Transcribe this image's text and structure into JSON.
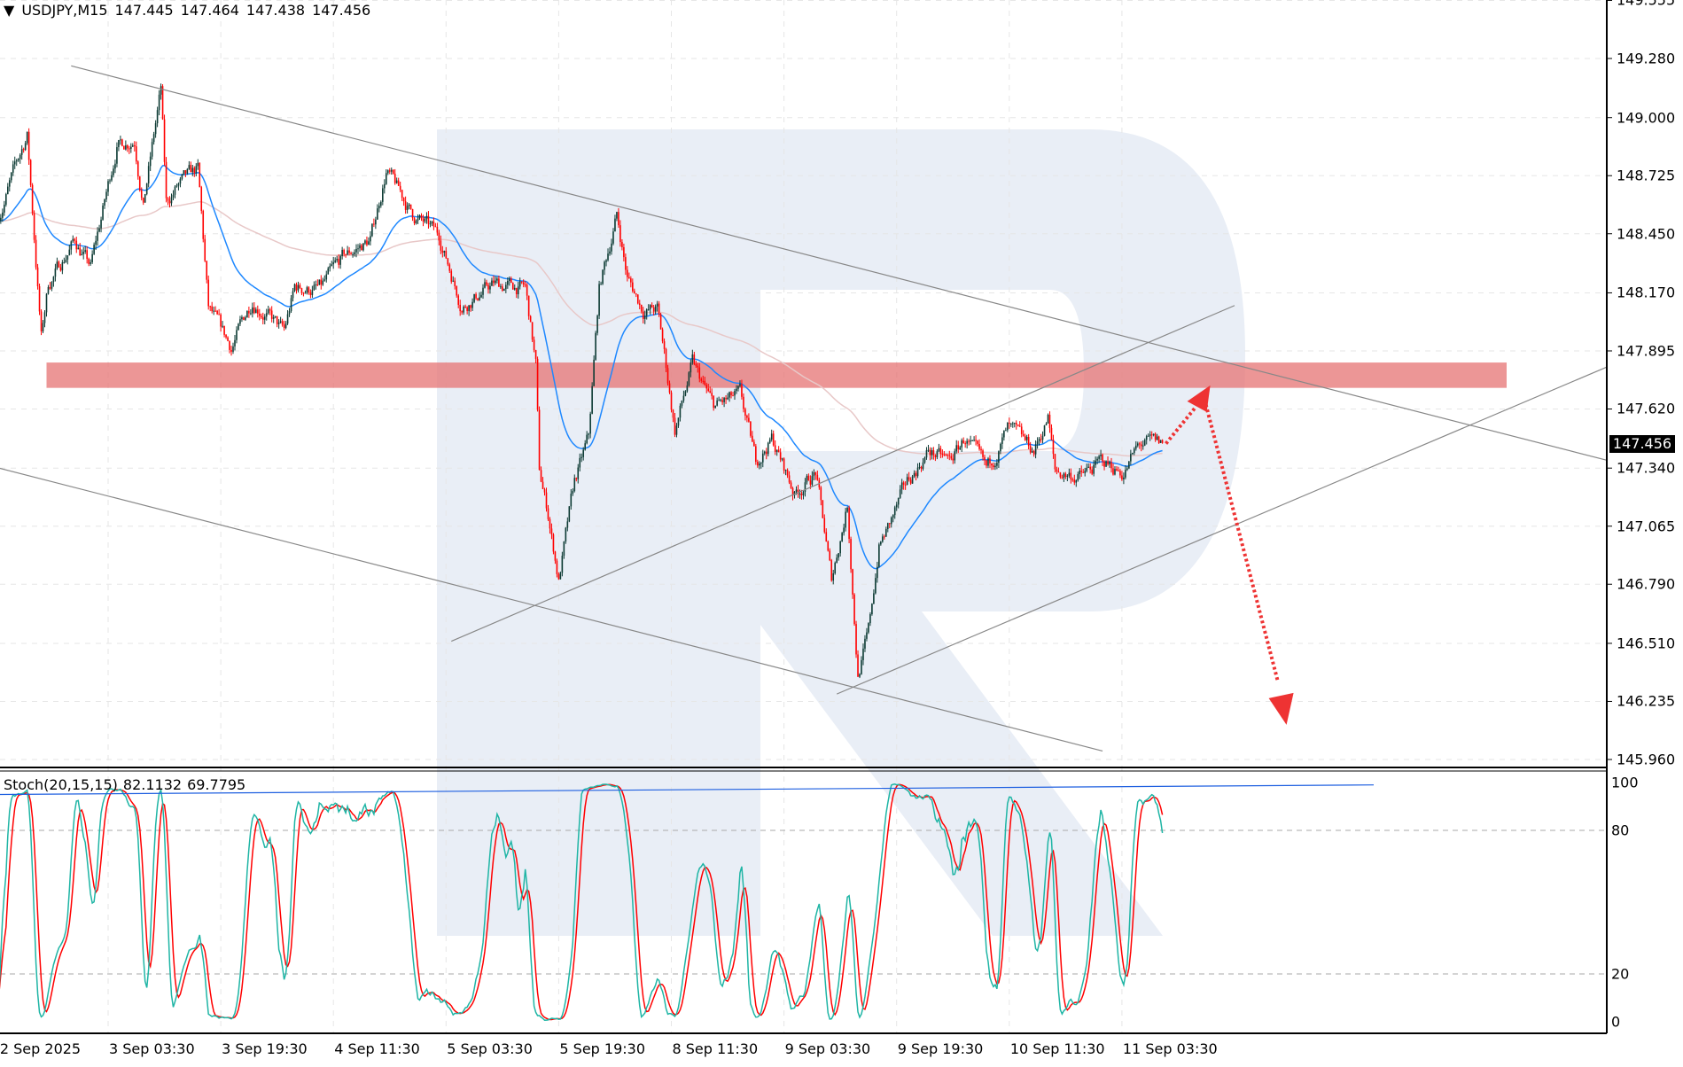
{
  "header": {
    "symbol_timeframe": "USDJPY,M15",
    "open": "147.445",
    "high": "147.464",
    "low": "147.438",
    "close": "147.456",
    "menu_icon": "triangle-down-icon"
  },
  "indicator": {
    "name": "Stoch(20,15,15)",
    "k_value": "82.1132",
    "d_value": "69.7795"
  },
  "colors": {
    "bull_candle": "#0d3b34",
    "bear_candle": "#ff0000",
    "ma_fast": "#1e88ff",
    "ma_slow": "#e8c8c8",
    "resistance_zone": "#e57373",
    "forecast_arrow": "#ee3333",
    "stoch_k": "#1fb5a5",
    "stoch_d": "#ff0000",
    "watermark": "#e9eef6"
  },
  "chart_data": {
    "type": "candlestick",
    "symbol": "USDJPY",
    "timeframe": "M15",
    "current_price": "147.456",
    "ylim": [
      145.96,
      149.555
    ],
    "price_ticks": [
      "149.555",
      "149.280",
      "149.000",
      "148.725",
      "148.450",
      "148.170",
      "147.895",
      "147.620",
      "147.340",
      "147.065",
      "146.790",
      "146.510",
      "146.235",
      "145.960"
    ],
    "time_labels": [
      "2 Sep 2025",
      "3 Sep 03:30",
      "3 Sep 19:30",
      "4 Sep 11:30",
      "5 Sep 03:30",
      "5 Sep 19:30",
      "8 Sep 11:30",
      "9 Sep 03:30",
      "9 Sep 19:30",
      "10 Sep 11:30",
      "11 Sep 03:30"
    ],
    "time_label_times": [
      "2 Sep 12:00",
      "3 Sep 03:30",
      "3 Sep 19:30",
      "4 Sep 11:30",
      "5 Sep 03:30",
      "5 Sep 19:30",
      "8 Sep 11:30",
      "9 Sep 03:30",
      "9 Sep 19:30",
      "10 Sep 11:30",
      "11 Sep 03:30"
    ],
    "price_path": [
      [
        "2 Sep 12:00",
        148.54
      ],
      [
        "2 Sep 16:00",
        148.92
      ],
      [
        "2 Sep 18:00",
        147.96
      ],
      [
        "2 Sep 19:00",
        148.21
      ],
      [
        "2 Sep 22:45",
        148.42
      ],
      [
        "3 Sep 01:00",
        148.29
      ],
      [
        "3 Sep 04:45",
        148.87
      ],
      [
        "3 Sep 07:15",
        148.9
      ],
      [
        "3 Sep 08:30",
        148.59
      ],
      [
        "3 Sep 11:00",
        149.13
      ],
      [
        "3 Sep 11:45",
        148.59
      ],
      [
        "3 Sep 13:15",
        148.67
      ],
      [
        "3 Sep 16:15",
        148.75
      ],
      [
        "3 Sep 17:45",
        148.09
      ],
      [
        "3 Sep 21:00",
        147.91
      ],
      [
        "4 Sep 00:00",
        148.14
      ],
      [
        "4 Sep 04:30",
        147.98
      ],
      [
        "4 Sep 06:00",
        148.19
      ],
      [
        "4 Sep 09:45",
        148.19
      ],
      [
        "4 Sep 13:00",
        148.34
      ],
      [
        "4 Sep 16:45",
        148.42
      ],
      [
        "4 Sep 19:00",
        148.75
      ],
      [
        "4 Sep 22:45",
        148.54
      ],
      [
        "5 Sep 02:30",
        148.44
      ],
      [
        "5 Sep 05:45",
        148.11
      ],
      [
        "5 Sep 10:15",
        148.21
      ],
      [
        "5 Sep 14:45",
        148.19
      ],
      [
        "5 Sep 16:15",
        147.83
      ],
      [
        "5 Sep 16:45",
        147.32
      ],
      [
        "5 Sep 18:00",
        147.12
      ],
      [
        "5 Sep 19:30",
        146.81
      ],
      [
        "5 Sep 21:45",
        147.27
      ],
      [
        "5 Sep 23:45",
        147.48
      ],
      [
        "8 Sep 01:15",
        148.19
      ],
      [
        "8 Sep 03:45",
        148.54
      ],
      [
        "8 Sep 05:15",
        148.24
      ],
      [
        "8 Sep 07:30",
        148.09
      ],
      [
        "8 Sep 09:30",
        148.09
      ],
      [
        "8 Sep 10:30",
        147.88
      ],
      [
        "8 Sep 12:00",
        147.52
      ],
      [
        "8 Sep 14:30",
        147.83
      ],
      [
        "8 Sep 17:30",
        147.63
      ],
      [
        "8 Sep 21:15",
        147.68
      ],
      [
        "8 Sep 23:30",
        147.37
      ],
      [
        "9 Sep 01:45",
        147.48
      ],
      [
        "9 Sep 05:00",
        147.22
      ],
      [
        "9 Sep 08:00",
        147.32
      ],
      [
        "9 Sep 10:15",
        146.81
      ],
      [
        "9 Sep 12:30",
        147.17
      ],
      [
        "9 Sep 14:00",
        146.36
      ],
      [
        "9 Sep 15:30",
        146.56
      ],
      [
        "9 Sep 17:00",
        146.97
      ],
      [
        "9 Sep 18:30",
        147.07
      ],
      [
        "9 Sep 21:00",
        147.27
      ],
      [
        "10 Sep 00:00",
        147.42
      ],
      [
        "10 Sep 03:00",
        147.37
      ],
      [
        "10 Sep 05:15",
        147.48
      ],
      [
        "10 Sep 08:15",
        147.32
      ],
      [
        "10 Sep 11:15",
        147.52
      ],
      [
        "10 Sep 15:00",
        147.42
      ],
      [
        "10 Sep 17:00",
        147.58
      ],
      [
        "10 Sep 18:00",
        147.32
      ],
      [
        "10 Sep 21:45",
        147.3
      ],
      [
        "11 Sep 00:45",
        147.37
      ],
      [
        "11 Sep 03:45",
        147.32
      ],
      [
        "11 Sep 06:00",
        147.45
      ],
      [
        "11 Sep 09:15",
        147.456
      ]
    ],
    "trendlines": [
      {
        "from": [
          "2 Sep 22:15",
          149.245
        ],
        "to": [
          "11 Sep 19:30",
          147.83
        ],
        "extend": true
      },
      {
        "from": [
          "2 Sep 12:00",
          147.34
        ],
        "to": [
          "11 Sep 00:45",
          146.0
        ],
        "extend": false
      },
      {
        "from": [
          "5 Sep 04:15",
          146.52
        ],
        "to": [
          "11 Sep 19:30",
          148.11
        ],
        "extend": false
      },
      {
        "from": [
          "9 Sep 11:00",
          146.27
        ],
        "to": [
          "11 Sep 19:30",
          147.07
        ],
        "extend": true
      }
    ],
    "resistance_zone": {
      "from": "2 Sep 18:45",
      "price_low": 147.72,
      "price_high": 147.84
    },
    "forecast": {
      "start_price": 147.456,
      "up_target": 147.69,
      "down_target": 146.25
    },
    "moving_averages": [
      {
        "type": "fast"
      },
      {
        "type": "slow"
      }
    ],
    "stochastic": {
      "k_period": 20,
      "d_period": 15,
      "slowing": 15,
      "levels": [
        20,
        80
      ],
      "ticks": [
        "100",
        "80",
        "20",
        "0"
      ],
      "trendline": [
        95,
        99
      ]
    }
  }
}
